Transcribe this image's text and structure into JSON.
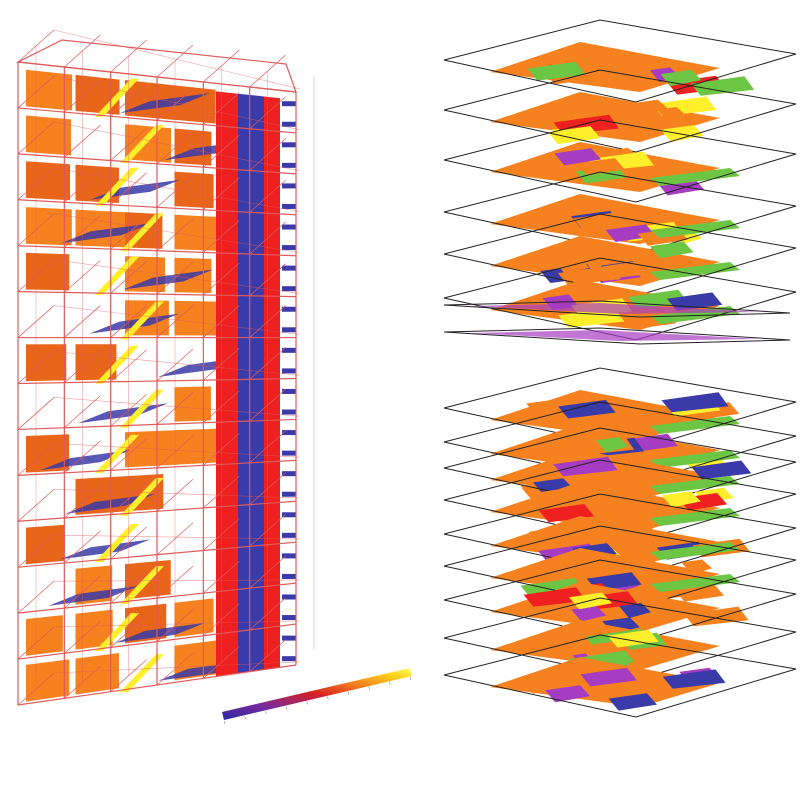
{
  "colors": {
    "frame": "#e05a5a",
    "blue": "#3a3aa8",
    "red": "#ee2020",
    "orange": "#f5821f",
    "orange_dark": "#e8651a",
    "yellow": "#ffef2a",
    "magenta": "#a63cc2",
    "green": "#6cc644",
    "outline": "#222222"
  },
  "building": {
    "floors": 14,
    "grid_columns": 6
  },
  "floor_plans": {
    "count": 17
  },
  "legend": {
    "gradient": [
      "#2a2aa0",
      "#7a2a9a",
      "#d82020",
      "#f5821f",
      "#ffd21a",
      "#ffff66"
    ]
  }
}
